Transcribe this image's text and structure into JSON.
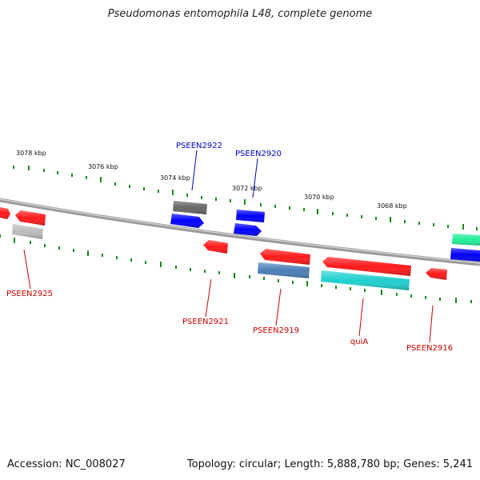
{
  "title": "Pseudomonas entomophila L48, complete genome",
  "footer": {
    "accession": "Accession: NC_008027",
    "stats": "Topology: circular; Length: 5,888,780 bp; Genes: 5,241"
  },
  "scale_labels": [
    "3078 kbp",
    "3076 kbp",
    "3074 kbp",
    "3072 kbp",
    "3070 kbp",
    "3068 kbp"
  ],
  "gene_labels": [
    {
      "name": "PSEEN2922",
      "color": "#0000cc"
    },
    {
      "name": "PSEEN2920",
      "color": "#0000cc"
    },
    {
      "name": "PSEEN2925",
      "color": "#cc0000"
    },
    {
      "name": "PSEEN2921",
      "color": "#cc0000"
    },
    {
      "name": "PSEEN2919",
      "color": "#cc0000"
    },
    {
      "name": "quiA",
      "color": "#cc0000"
    },
    {
      "name": "PSEEN2916",
      "color": "#cc0000"
    }
  ],
  "colors": {
    "red": "#ff1a1a",
    "blue": "#0000ff",
    "dark_gray": "#666666",
    "light_gray": "#bbbbbb",
    "steel_blue": "#4a7fb5",
    "cyan": "#1fcfcf",
    "spring_green": "#22ee99",
    "tick_green": "#1a8a1a",
    "backbone": "#888888"
  }
}
